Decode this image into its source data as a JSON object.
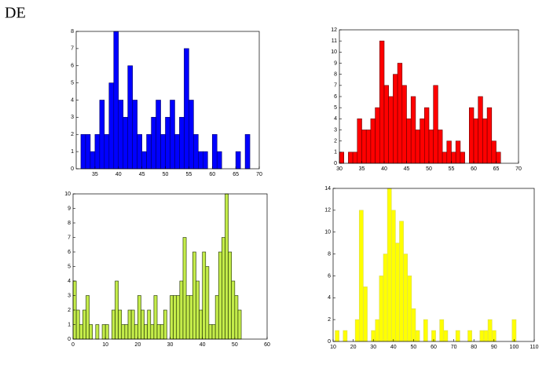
{
  "title": "DE",
  "chart_data": [
    {
      "type": "histogram",
      "color": "#0000ff",
      "edgecolor": "#000066",
      "bins": [
        32,
        33,
        34,
        35,
        36,
        37,
        38,
        39,
        40,
        41,
        42,
        43,
        44,
        45,
        46,
        47,
        48,
        49,
        50,
        51,
        52,
        53,
        54,
        55,
        56,
        57,
        58,
        59,
        60,
        61,
        62,
        63,
        64,
        65,
        66,
        67,
        68
      ],
      "values": [
        2,
        2,
        1,
        2,
        4,
        2,
        5,
        8,
        4,
        3,
        6,
        4,
        2,
        1,
        2,
        3,
        4,
        2,
        3,
        4,
        2,
        3,
        7,
        4,
        2,
        1,
        1,
        0,
        2,
        1,
        0,
        0,
        0,
        1,
        0,
        2
      ],
      "xlim": [
        31,
        70
      ],
      "xticks": [
        35,
        40,
        45,
        50,
        55,
        60,
        65,
        70
      ],
      "ylim": [
        0,
        8
      ],
      "yticks": [
        0,
        1,
        2,
        3,
        4,
        5,
        6,
        7,
        8
      ]
    },
    {
      "type": "histogram",
      "color": "#ff0000",
      "edgecolor": "#660000",
      "bins": [
        30,
        31,
        32,
        33,
        34,
        35,
        36,
        37,
        38,
        39,
        40,
        41,
        42,
        43,
        44,
        45,
        46,
        47,
        48,
        49,
        50,
        51,
        52,
        53,
        54,
        55,
        56,
        57,
        58,
        59,
        60,
        61,
        62,
        63,
        64,
        65,
        66
      ],
      "values": [
        1,
        0,
        1,
        1,
        4,
        3,
        3,
        4,
        5,
        11,
        7,
        6,
        8,
        9,
        7,
        4,
        6,
        3,
        4,
        5,
        3,
        7,
        3,
        1,
        2,
        1,
        2,
        1,
        0,
        5,
        4,
        6,
        4,
        5,
        2,
        1
      ],
      "xlim": [
        30,
        70
      ],
      "xticks": [
        30,
        35,
        40,
        45,
        50,
        55,
        60,
        65,
        70
      ],
      "ylim": [
        0,
        12
      ],
      "yticks": [
        0,
        1,
        2,
        3,
        4,
        5,
        6,
        7,
        8,
        9,
        10,
        11,
        12
      ]
    },
    {
      "type": "histogram",
      "color": "#c4ec4a",
      "edgecolor": "#1a2a00",
      "bins": [
        0,
        1,
        2,
        3,
        4,
        5,
        6,
        7,
        8,
        9,
        10,
        11,
        12,
        13,
        14,
        15,
        16,
        17,
        18,
        19,
        20,
        21,
        22,
        23,
        24,
        25,
        26,
        27,
        28,
        29,
        30,
        31,
        32,
        33,
        34,
        35,
        36,
        37,
        38,
        39,
        40,
        41,
        42,
        43,
        44,
        45,
        46,
        47,
        48,
        49,
        50,
        51,
        52,
        53
      ],
      "values": [
        4,
        2,
        1,
        2,
        3,
        1,
        0,
        1,
        0,
        1,
        1,
        0,
        2,
        4,
        2,
        1,
        1,
        2,
        2,
        1,
        3,
        2,
        1,
        2,
        1,
        3,
        1,
        1,
        2,
        0,
        3,
        3,
        3,
        4,
        7,
        3,
        3,
        6,
        4,
        2,
        6,
        5,
        1,
        1,
        3,
        6,
        7,
        10,
        6,
        4,
        3,
        2,
        0
      ],
      "xlim": [
        0,
        60
      ],
      "xticks": [
        0,
        10,
        20,
        30,
        40,
        50,
        60
      ],
      "ylim": [
        0,
        10
      ],
      "yticks": [
        0,
        1,
        2,
        3,
        4,
        5,
        6,
        7,
        8,
        9,
        10
      ]
    },
    {
      "type": "histogram",
      "color": "#ffff00",
      "edgecolor": "#d8d860",
      "bins": [
        11,
        13,
        15,
        17,
        19,
        21,
        23,
        25,
        27,
        29,
        31,
        33,
        35,
        37,
        39,
        41,
        43,
        45,
        47,
        49,
        51,
        53,
        55,
        57,
        59,
        61,
        63,
        65,
        67,
        69,
        71,
        73,
        75,
        77,
        79,
        81,
        83,
        85,
        87,
        89,
        91,
        93,
        95,
        97,
        99,
        101
      ],
      "values": [
        1,
        0,
        1,
        0,
        0,
        2,
        12,
        5,
        0,
        1,
        2,
        6,
        8,
        14,
        12,
        9,
        11,
        8,
        6,
        3,
        1,
        0,
        2,
        0,
        1,
        0,
        2,
        1,
        0,
        0,
        1,
        0,
        0,
        1,
        0,
        0,
        1,
        1,
        2,
        1,
        0,
        0,
        0,
        0,
        2
      ],
      "xlim": [
        10,
        110
      ],
      "xticks": [
        10,
        20,
        30,
        40,
        50,
        60,
        70,
        80,
        90,
        100,
        110
      ],
      "ylim": [
        0,
        14
      ],
      "yticks": [
        0,
        2,
        4,
        6,
        8,
        10,
        12,
        14
      ]
    }
  ]
}
